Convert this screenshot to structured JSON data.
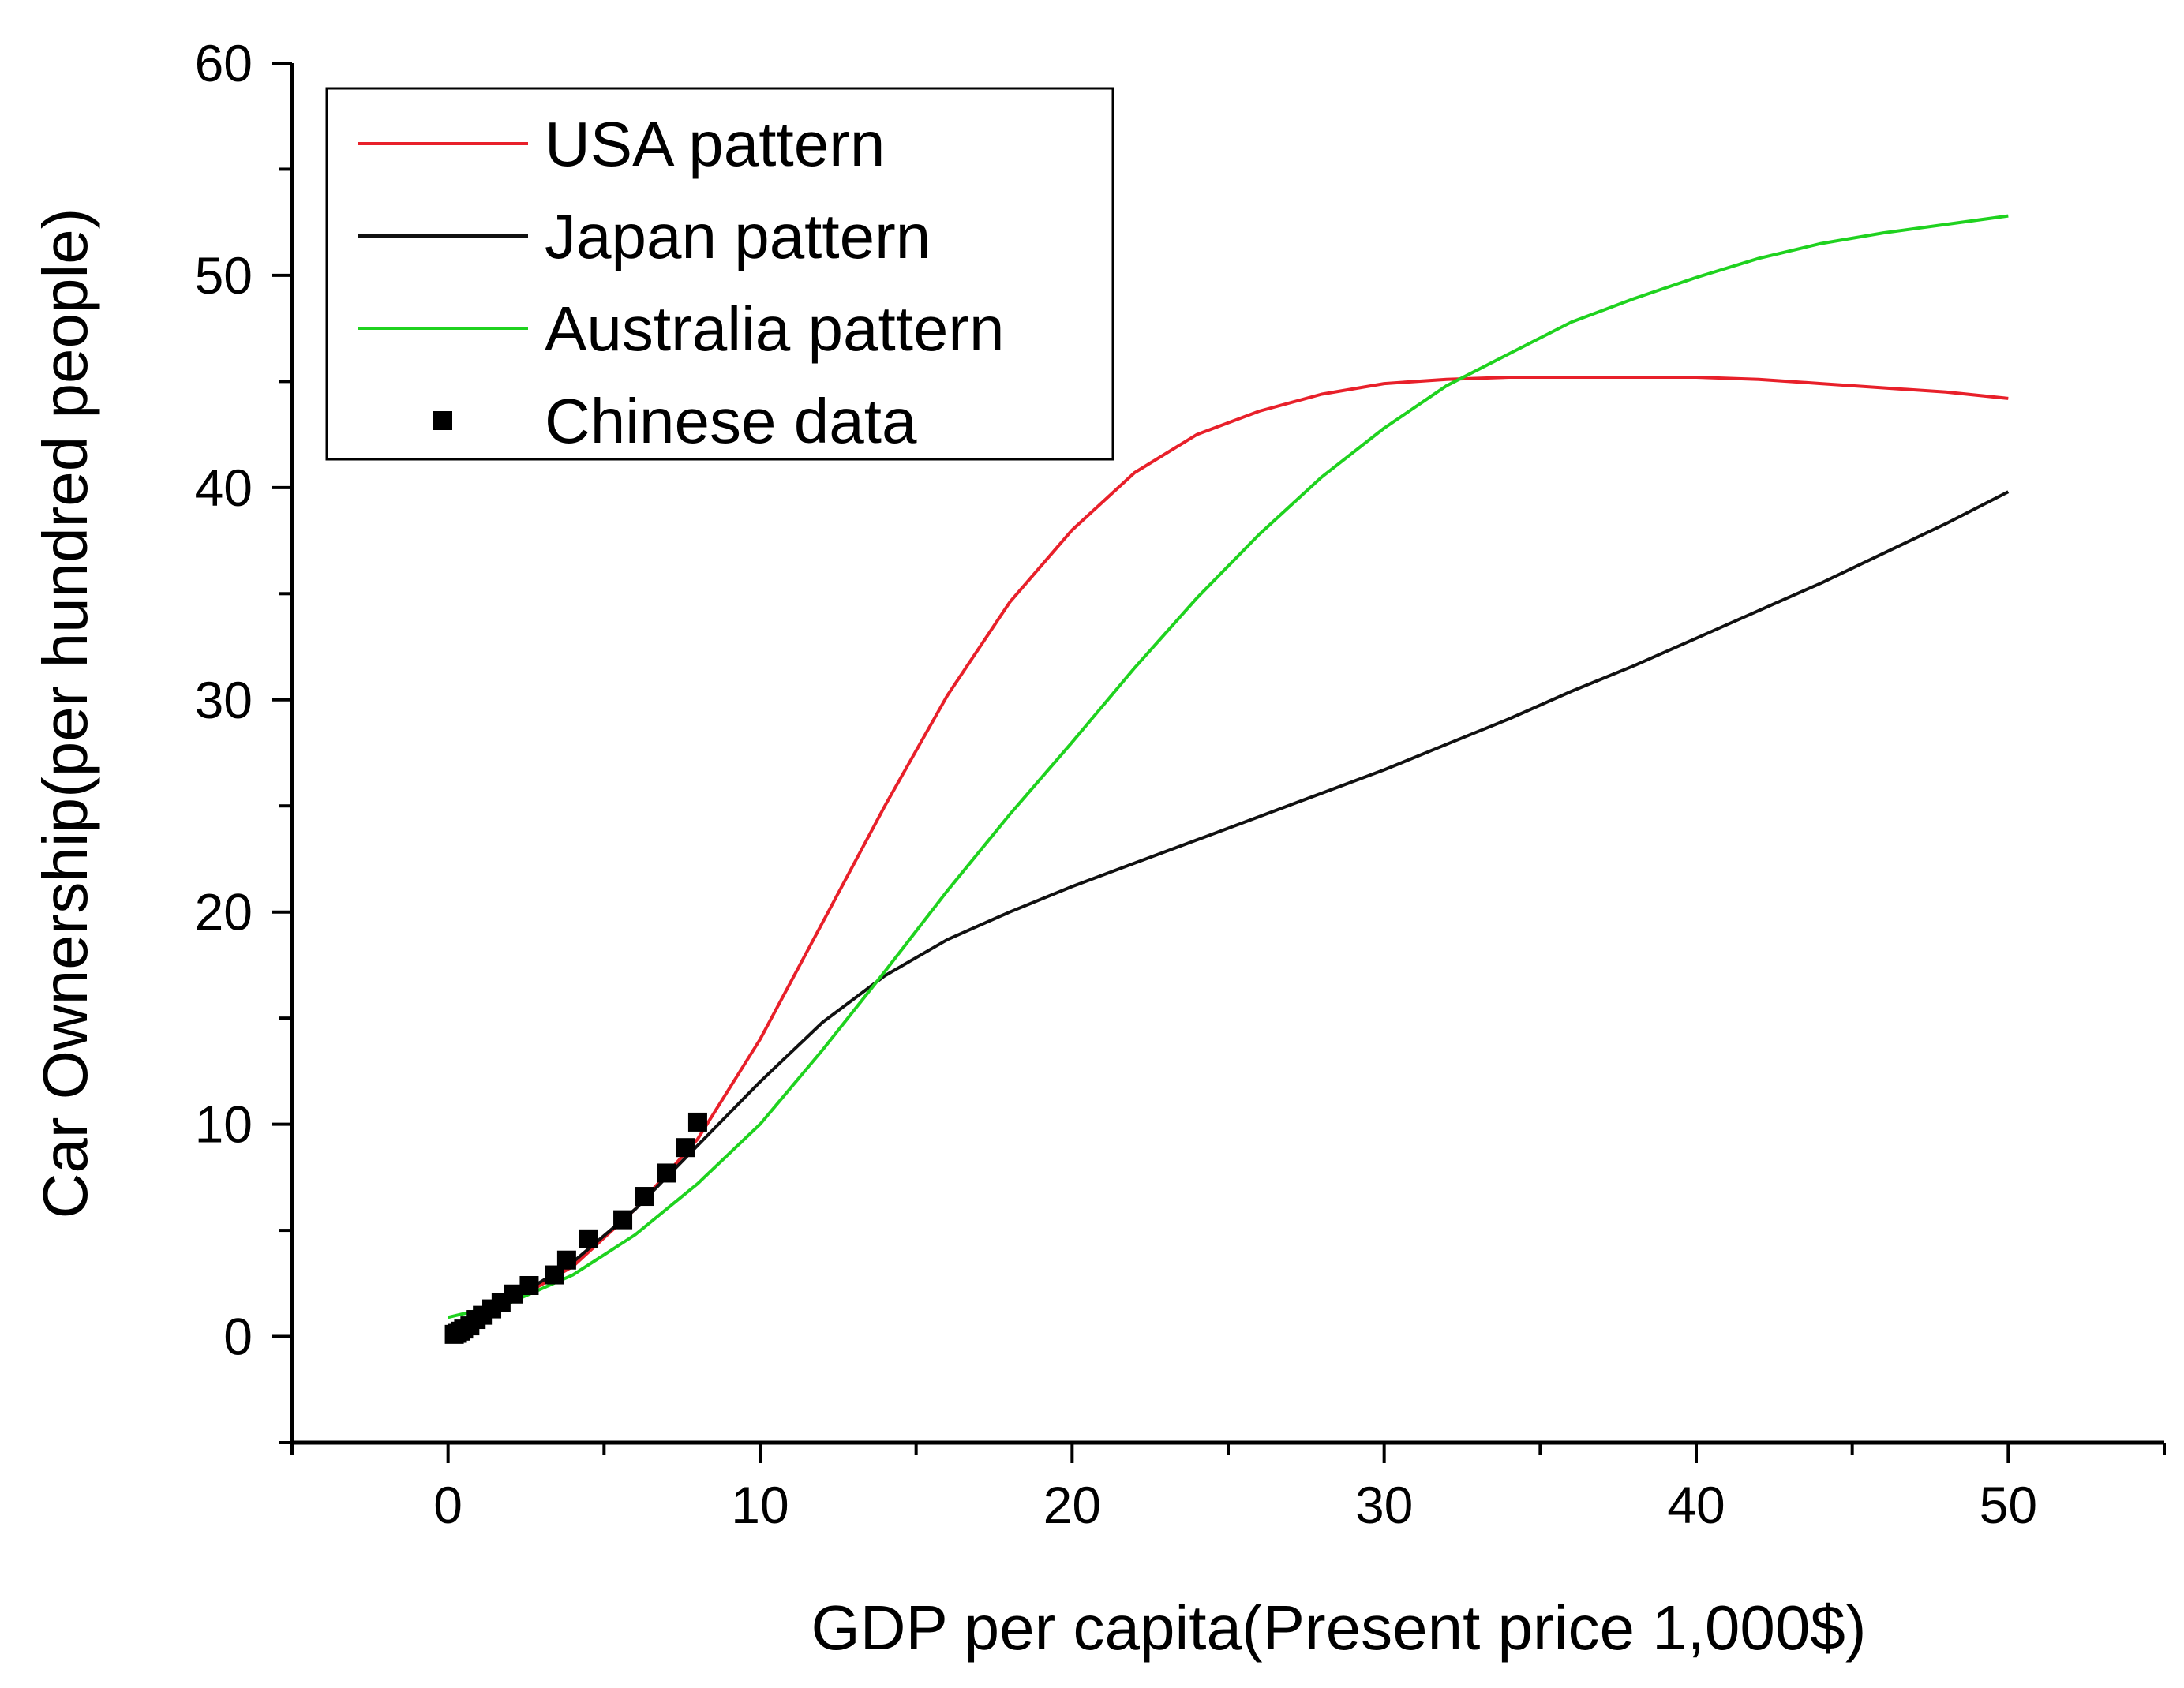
{
  "chart_data": {
    "type": "line",
    "title": "",
    "xlabel": "GDP per capita(Present price 1,000$)",
    "ylabel": "Car Ownership(per hundred people)",
    "xlim": [
      -5,
      55
    ],
    "ylim": [
      -5,
      60
    ],
    "xticks": [
      0,
      10,
      20,
      30,
      40,
      50
    ],
    "yticks": [
      0,
      10,
      20,
      30,
      40,
      50,
      60
    ],
    "grid": false,
    "legend_position": "top-left",
    "series": [
      {
        "name": "USA pattern",
        "kind": "line",
        "color": "#e8202a",
        "x": [
          0,
          2,
          4,
          6,
          8,
          10,
          12,
          14,
          16,
          18,
          20,
          22,
          24,
          26,
          28,
          30,
          32,
          34,
          36,
          38,
          40,
          42,
          44,
          46,
          48,
          50
        ],
        "y": [
          0.3,
          1.6,
          3.3,
          6.0,
          9.3,
          14.0,
          19.5,
          25.0,
          30.2,
          34.6,
          38.0,
          40.7,
          42.5,
          43.6,
          44.4,
          44.9,
          45.1,
          45.2,
          45.2,
          45.2,
          45.2,
          45.1,
          44.9,
          44.7,
          44.5,
          44.2
        ]
      },
      {
        "name": "Japan pattern",
        "kind": "line",
        "color": "#111111",
        "x": [
          0,
          2,
          4,
          6,
          8,
          10,
          12,
          14,
          16,
          18,
          20,
          22,
          24,
          26,
          28,
          30,
          32,
          34,
          36,
          38,
          40,
          42,
          44,
          46,
          48,
          50
        ],
        "y": [
          0.3,
          1.7,
          3.5,
          6.0,
          9.0,
          12.0,
          14.8,
          17.0,
          18.7,
          20.0,
          21.2,
          22.3,
          23.4,
          24.5,
          25.6,
          26.7,
          27.9,
          29.1,
          30.4,
          31.6,
          32.9,
          34.2,
          35.5,
          36.9,
          38.3,
          39.8
        ]
      },
      {
        "name": "Australia pattern",
        "kind": "line",
        "color": "#1fd21f",
        "x": [
          0,
          2,
          4,
          6,
          8,
          10,
          12,
          14,
          16,
          18,
          20,
          22,
          24,
          26,
          28,
          30,
          32,
          34,
          36,
          38,
          40,
          42,
          44,
          46,
          48,
          50
        ],
        "y": [
          0.9,
          1.6,
          2.9,
          4.8,
          7.2,
          10.0,
          13.5,
          17.2,
          21.0,
          24.6,
          28.0,
          31.5,
          34.8,
          37.8,
          40.5,
          42.8,
          44.8,
          46.3,
          47.8,
          48.9,
          49.9,
          50.8,
          51.5,
          52.0,
          52.4,
          52.8
        ]
      },
      {
        "name": "Chinese data",
        "kind": "scatter",
        "color": "#000000",
        "x": [
          0.2,
          0.3,
          0.4,
          0.5,
          0.7,
          0.9,
          1.1,
          1.4,
          1.7,
          2.1,
          2.6,
          3.4,
          3.8,
          4.5,
          5.6,
          6.3,
          7.0,
          7.6,
          8.0
        ],
        "y": [
          0.1,
          0.15,
          0.25,
          0.35,
          0.5,
          0.8,
          1.0,
          1.3,
          1.6,
          2.0,
          2.4,
          2.9,
          3.6,
          4.6,
          5.5,
          6.6,
          7.7,
          8.9,
          10.1
        ]
      }
    ]
  }
}
